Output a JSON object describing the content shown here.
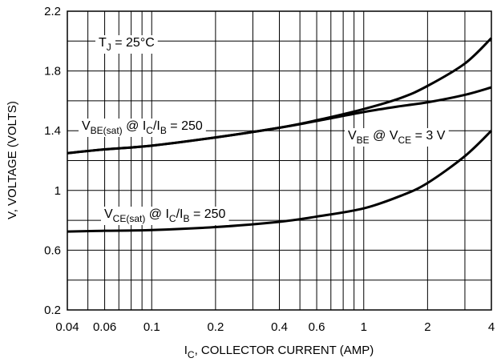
{
  "chart_data": {
    "type": "line",
    "x_scale": "log",
    "xlim": [
      0.04,
      4
    ],
    "ylim": [
      0.2,
      2.2
    ],
    "grid": true,
    "x_ticks": [
      {
        "value": 0.04,
        "label": "0.04"
      },
      {
        "value": 0.06,
        "label": "0.06"
      },
      {
        "value": 0.1,
        "label": "0.1"
      },
      {
        "value": 0.2,
        "label": "0.2"
      },
      {
        "value": 0.4,
        "label": "0.4"
      },
      {
        "value": 0.6,
        "label": "0.6"
      },
      {
        "value": 1,
        "label": "1"
      },
      {
        "value": 2,
        "label": "2"
      },
      {
        "value": 4,
        "label": "4"
      }
    ],
    "x_minor_grid": [
      0.05,
      0.07,
      0.08,
      0.09,
      0.3,
      0.5,
      0.7,
      0.8,
      0.9,
      3
    ],
    "y_ticks": [
      {
        "value": 0.2,
        "label": "0.2"
      },
      {
        "value": 0.6,
        "label": "0.6"
      },
      {
        "value": 1.0,
        "label": "1"
      },
      {
        "value": 1.4,
        "label": "1.4"
      },
      {
        "value": 1.8,
        "label": "1.8"
      },
      {
        "value": 2.2,
        "label": "2.2"
      }
    ],
    "y_minor_grid": [
      0.4,
      0.8,
      1.2,
      1.6,
      2.0
    ],
    "xlabel": {
      "main": "I",
      "sub": "C",
      "rest": ", COLLECTOR CURRENT (AMP)"
    },
    "ylabel": "V, VOLTAGE (VOLTS)",
    "series": [
      {
        "id": "vbe-sat",
        "x": [
          0.04,
          0.06,
          0.1,
          0.2,
          0.4,
          0.6,
          1,
          1.5,
          2,
          3,
          4
        ],
        "y": [
          1.25,
          1.275,
          1.3,
          1.355,
          1.42,
          1.47,
          1.545,
          1.62,
          1.7,
          1.85,
          2.02
        ]
      },
      {
        "id": "vbe",
        "x": [
          0.04,
          0.06,
          0.1,
          0.2,
          0.4,
          0.6,
          1,
          1.5,
          2,
          3,
          4
        ],
        "y": [
          1.25,
          1.275,
          1.3,
          1.355,
          1.42,
          1.465,
          1.525,
          1.565,
          1.59,
          1.64,
          1.69
        ]
      },
      {
        "id": "vce-sat",
        "x": [
          0.04,
          0.06,
          0.1,
          0.2,
          0.4,
          0.6,
          1,
          1.5,
          2,
          3,
          4
        ],
        "y": [
          0.725,
          0.73,
          0.735,
          0.755,
          0.79,
          0.825,
          0.88,
          0.965,
          1.05,
          1.23,
          1.4
        ]
      }
    ],
    "annotations": [
      {
        "id": "tj",
        "parts": [
          {
            "t": "T",
            "s": ""
          },
          {
            "t": "J",
            "s": "sub"
          },
          {
            "t": " = 25°C",
            "s": ""
          }
        ]
      },
      {
        "id": "vbe-sat-label",
        "parts": [
          {
            "t": "V",
            "s": ""
          },
          {
            "t": "BE(sat)",
            "s": "sub"
          },
          {
            "t": " @ I",
            "s": ""
          },
          {
            "t": "C",
            "s": "sub"
          },
          {
            "t": "/I",
            "s": ""
          },
          {
            "t": "B",
            "s": "sub"
          },
          {
            "t": " = 250",
            "s": ""
          }
        ]
      },
      {
        "id": "vbe-label",
        "parts": [
          {
            "t": "V",
            "s": ""
          },
          {
            "t": "BE",
            "s": "sub"
          },
          {
            "t": " @ V",
            "s": ""
          },
          {
            "t": "CE",
            "s": "sub"
          },
          {
            "t": " = 3 V",
            "s": ""
          }
        ]
      },
      {
        "id": "vce-sat-label",
        "parts": [
          {
            "t": "V",
            "s": ""
          },
          {
            "t": "CE(sat)",
            "s": "sub"
          },
          {
            "t": " @ I",
            "s": ""
          },
          {
            "t": "C",
            "s": "sub"
          },
          {
            "t": "/I",
            "s": ""
          },
          {
            "t": "B",
            "s": "sub"
          },
          {
            "t": " = 250",
            "s": ""
          }
        ]
      }
    ]
  }
}
